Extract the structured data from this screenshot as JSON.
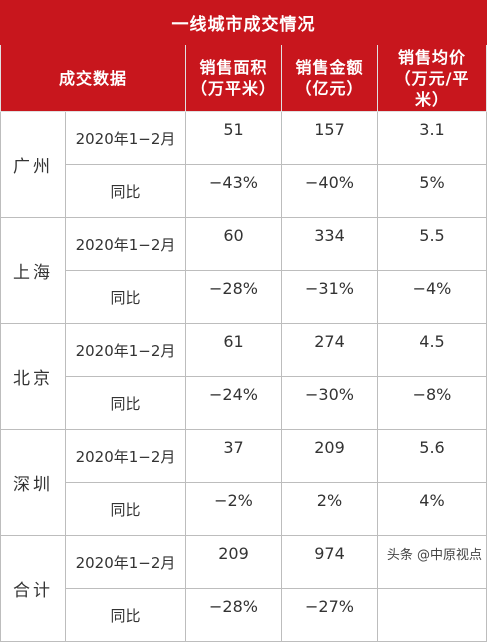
{
  "table": {
    "title": "一线城市成交情况",
    "headers": {
      "data_label": "成交数据",
      "area": "销售面积（万平米）",
      "amount": "销售金额（亿元）",
      "price": "销售均价（万元/平米）"
    },
    "cities": [
      {
        "name": "广州",
        "rows": [
          {
            "label": "2020年1−2月",
            "area": "51",
            "amount": "157",
            "price": "3.1"
          },
          {
            "label": "同比",
            "area": "−43%",
            "amount": "−40%",
            "price": "5%"
          }
        ]
      },
      {
        "name": "上海",
        "rows": [
          {
            "label": "2020年1−2月",
            "area": "60",
            "amount": "334",
            "price": "5.5"
          },
          {
            "label": "同比",
            "area": "−28%",
            "amount": "−31%",
            "price": "−4%"
          }
        ]
      },
      {
        "name": "北京",
        "rows": [
          {
            "label": "2020年1−2月",
            "area": "61",
            "amount": "274",
            "price": "4.5"
          },
          {
            "label": "同比",
            "area": "−24%",
            "amount": "−30%",
            "price": "−8%"
          }
        ]
      },
      {
        "name": "深圳",
        "rows": [
          {
            "label": "2020年1−2月",
            "area": "37",
            "amount": "209",
            "price": "5.6"
          },
          {
            "label": "同比",
            "area": "−2%",
            "amount": "2%",
            "price": "4%"
          }
        ]
      },
      {
        "name": "合计",
        "rows": [
          {
            "label": "2020年1−2月",
            "area": "209",
            "amount": "974",
            "price": ""
          },
          {
            "label": "同比",
            "area": "−28%",
            "amount": "−27%",
            "price": ""
          }
        ]
      }
    ]
  },
  "watermark": "头条 @中原视点",
  "colors": {
    "header_red": "#c8161d",
    "border_gray": "#bdbdbd",
    "text_dark": "#333333",
    "text_white": "#ffffff"
  }
}
